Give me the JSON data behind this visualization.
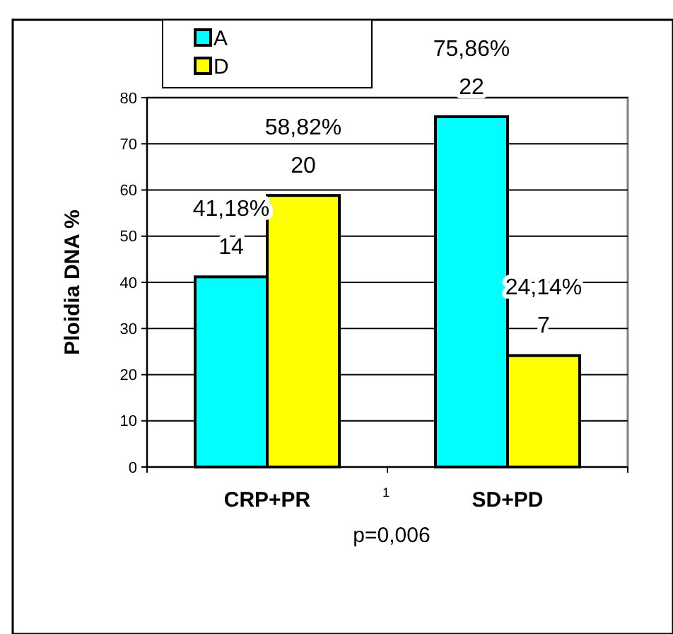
{
  "chart_data": {
    "type": "bar",
    "ylabel": "Ploidia DNA %",
    "categories": [
      "CRP+PR",
      "SD+PD"
    ],
    "series": [
      {
        "name": "A",
        "color": "#00ffff",
        "values": [
          41.18,
          75.86
        ],
        "value_labels": [
          "41,18%\n14",
          "75,86%\n22"
        ]
      },
      {
        "name": "D",
        "color": "#ffff00",
        "values": [
          58.82,
          24.14
        ],
        "value_labels": [
          "58,82%\n20",
          "24,14%\n7"
        ]
      }
    ],
    "ylim": [
      0,
      80
    ],
    "yticks": [
      0,
      10,
      20,
      30,
      40,
      50,
      60,
      70,
      80
    ],
    "grid": "y",
    "legend": "top",
    "annotations": [
      "1",
      "p=0,006"
    ]
  }
}
